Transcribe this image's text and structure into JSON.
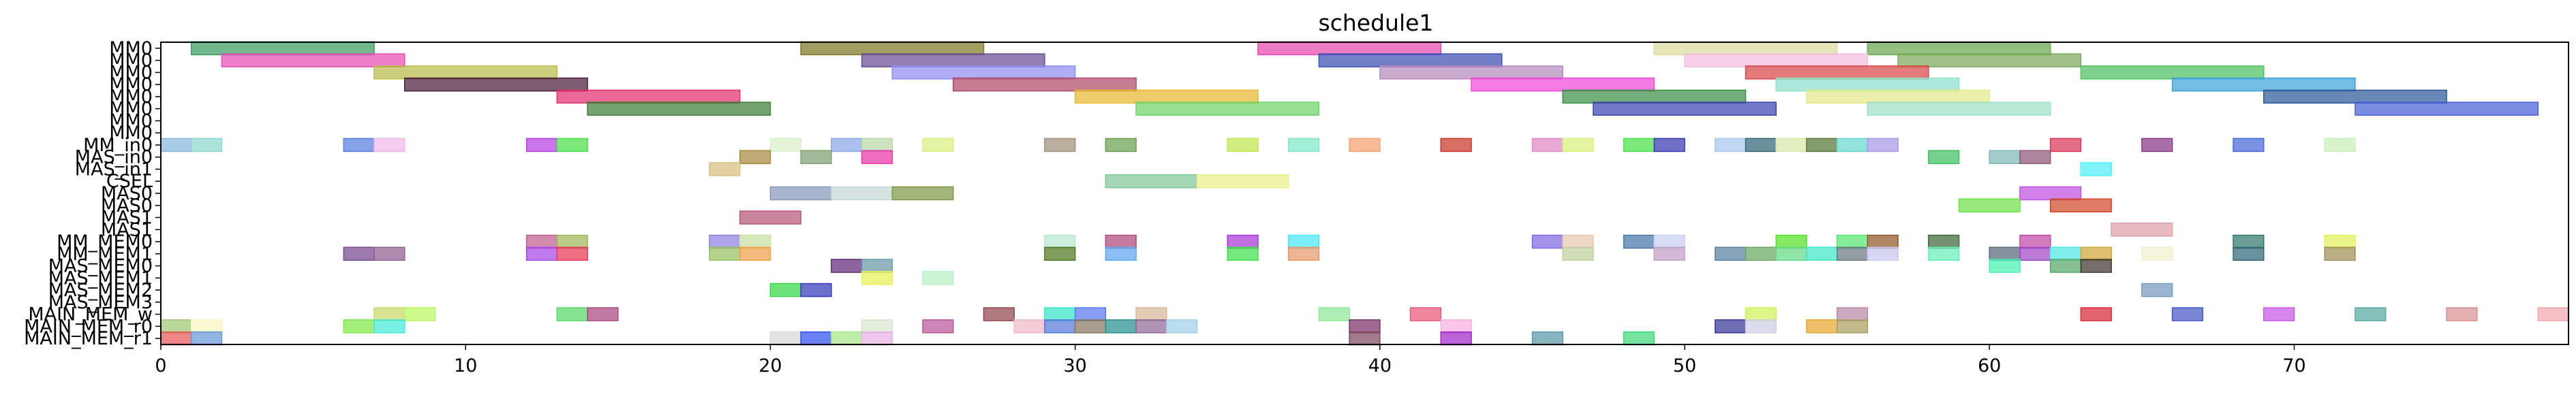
{
  "chart_data": {
    "type": "gantt",
    "title": "schedule1",
    "xlabel": "",
    "ylabel": "",
    "xlim": [
      0,
      79
    ],
    "xticks": [
      0,
      10,
      20,
      30,
      40,
      50,
      60,
      70
    ],
    "grid": false,
    "rows": [
      "MM0",
      "MM0",
      "MM0",
      "MM0",
      "MM0",
      "MM0",
      "MM0",
      "MM0",
      "MM_in0",
      "MAS_in0",
      "MAS_in1",
      "CSEL",
      "MAS0",
      "MAS0",
      "MAS1",
      "MAS1",
      "MM_MEM0",
      "MM_MEM1",
      "MAS_MEM0",
      "MAS_MEM1",
      "MAS_MEM2",
      "MAS_MEM3",
      "MAIN_MEM_w",
      "MAIN_MEM_r0",
      "MAIN_MEM_r1"
    ],
    "visible_row_labels": [
      "MM0",
      "MM0",
      "MM0",
      "MM0",
      "MM0",
      "MM0",
      "MM0",
      "MM0",
      "MM_in0",
      "MAS_in0",
      "MAS_in1",
      "CSEL",
      "MAS0",
      "MAS0",
      "MAS1",
      "MAS1",
      "MM_MEM0",
      "MM_MEM1",
      "MAS_MEM0",
      "MAS_MEM1",
      "MAS_MEM2",
      "MAS_MEM3",
      "MAIN_MEM_w",
      "MAIN_MEM_r0",
      "MAIN_MEM_r1"
    ],
    "tasks": [
      {
        "row": 0,
        "start": 1,
        "end": 7,
        "color": "#3a9c5e"
      },
      {
        "row": 0,
        "start": 21,
        "end": 27,
        "color": "#7f7a25"
      },
      {
        "row": 0,
        "start": 36,
        "end": 42,
        "color": "#e64aae"
      },
      {
        "row": 0,
        "start": 49,
        "end": 55,
        "color": "#d9dca0"
      },
      {
        "row": 0,
        "start": 56,
        "end": 62,
        "color": "#6aa84f"
      },
      {
        "row": 1,
        "start": 2,
        "end": 8,
        "color": "#e64cb8"
      },
      {
        "row": 1,
        "start": 23,
        "end": 29,
        "color": "#6b4c93"
      },
      {
        "row": 1,
        "start": 38,
        "end": 44,
        "color": "#3b4fb5"
      },
      {
        "row": 1,
        "start": 50,
        "end": 56,
        "color": "#f3bde0"
      },
      {
        "row": 1,
        "start": 57,
        "end": 63,
        "color": "#7bab5c"
      },
      {
        "row": 2,
        "start": 7,
        "end": 13,
        "color": "#b8bd4a"
      },
      {
        "row": 2,
        "start": 24,
        "end": 30,
        "color": "#8f8df0"
      },
      {
        "row": 2,
        "start": 40,
        "end": 46,
        "color": "#b68cbe"
      },
      {
        "row": 2,
        "start": 52,
        "end": 58,
        "color": "#d84848"
      },
      {
        "row": 2,
        "start": 63,
        "end": 69,
        "color": "#4fbf60"
      },
      {
        "row": 3,
        "start": 8,
        "end": 14,
        "color": "#4a1f3c"
      },
      {
        "row": 3,
        "start": 26,
        "end": 32,
        "color": "#b04a6a"
      },
      {
        "row": 3,
        "start": 43,
        "end": 49,
        "color": "#f049d8"
      },
      {
        "row": 3,
        "start": 53,
        "end": 59,
        "color": "#8ee0cc"
      },
      {
        "row": 3,
        "start": 66,
        "end": 72,
        "color": "#3ea4d9"
      },
      {
        "row": 4,
        "start": 13,
        "end": 19,
        "color": "#e32f6e"
      },
      {
        "row": 4,
        "start": 30,
        "end": 36,
        "color": "#e8b830"
      },
      {
        "row": 4,
        "start": 46,
        "end": 52,
        "color": "#3c9048"
      },
      {
        "row": 4,
        "start": 54,
        "end": 60,
        "color": "#e3ec8a"
      },
      {
        "row": 4,
        "start": 69,
        "end": 75,
        "color": "#2e5a9a"
      },
      {
        "row": 5,
        "start": 14,
        "end": 20,
        "color": "#3f7f3a"
      },
      {
        "row": 5,
        "start": 32,
        "end": 38,
        "color": "#6fd36a"
      },
      {
        "row": 5,
        "start": 47,
        "end": 53,
        "color": "#3b45b0"
      },
      {
        "row": 5,
        "start": 56,
        "end": 62,
        "color": "#9ee0c8"
      },
      {
        "row": 5,
        "start": 72,
        "end": 78,
        "color": "#4a60d8"
      },
      {
        "row": 8,
        "start": 0,
        "end": 1,
        "color": "#8bb8e0"
      },
      {
        "row": 8,
        "start": 1,
        "end": 2,
        "color": "#8cd8d0"
      },
      {
        "row": 8,
        "start": 6,
        "end": 7,
        "color": "#5a7ee0"
      },
      {
        "row": 8,
        "start": 7,
        "end": 8,
        "color": "#f0b8e8"
      },
      {
        "row": 8,
        "start": 12,
        "end": 13,
        "color": "#b83ee0"
      },
      {
        "row": 8,
        "start": 13,
        "end": 14,
        "color": "#48e048"
      },
      {
        "row": 8,
        "start": 20,
        "end": 21,
        "color": "#d8f0c8"
      },
      {
        "row": 8,
        "start": 22,
        "end": 23,
        "color": "#8ca8e8"
      },
      {
        "row": 8,
        "start": 23,
        "end": 24,
        "color": "#b8d8a8"
      },
      {
        "row": 8,
        "start": 25,
        "end": 26,
        "color": "#d8f080"
      },
      {
        "row": 8,
        "start": 29,
        "end": 30,
        "color": "#a09078"
      },
      {
        "row": 8,
        "start": 31,
        "end": 32,
        "color": "#6aa050"
      },
      {
        "row": 8,
        "start": 35,
        "end": 36,
        "color": "#c0e850"
      },
      {
        "row": 8,
        "start": 37,
        "end": 38,
        "color": "#80e8c8"
      },
      {
        "row": 8,
        "start": 39,
        "end": 40,
        "color": "#f8a070"
      },
      {
        "row": 8,
        "start": 42,
        "end": 43,
        "color": "#c83828"
      },
      {
        "row": 8,
        "start": 45,
        "end": 46,
        "color": "#e088c8"
      },
      {
        "row": 8,
        "start": 46,
        "end": 47,
        "color": "#d8f080"
      },
      {
        "row": 8,
        "start": 48,
        "end": 49,
        "color": "#48e048"
      },
      {
        "row": 8,
        "start": 49,
        "end": 50,
        "color": "#3838b0"
      },
      {
        "row": 8,
        "start": 51,
        "end": 52,
        "color": "#a8c8f0"
      },
      {
        "row": 8,
        "start": 52,
        "end": 53,
        "color": "#306878"
      },
      {
        "row": 8,
        "start": 53,
        "end": 54,
        "color": "#d8e8a8"
      },
      {
        "row": 8,
        "start": 54,
        "end": 55,
        "color": "#587838"
      },
      {
        "row": 8,
        "start": 55,
        "end": 56,
        "color": "#68d8d0"
      },
      {
        "row": 8,
        "start": 56,
        "end": 57,
        "color": "#a898e8"
      },
      {
        "row": 8,
        "start": 62,
        "end": 63,
        "color": "#d83858"
      },
      {
        "row": 8,
        "start": 65,
        "end": 66,
        "color": "#883888"
      },
      {
        "row": 8,
        "start": 68,
        "end": 69,
        "color": "#4868d8"
      },
      {
        "row": 8,
        "start": 71,
        "end": 72,
        "color": "#c8f0b8"
      },
      {
        "row": 9,
        "start": 19,
        "end": 20,
        "color": "#a88840"
      },
      {
        "row": 9,
        "start": 21,
        "end": 22,
        "color": "#80a070"
      },
      {
        "row": 9,
        "start": 23,
        "end": 24,
        "color": "#e838a8"
      },
      {
        "row": 9,
        "start": 58,
        "end": 59,
        "color": "#40c060"
      },
      {
        "row": 9,
        "start": 60,
        "end": 61,
        "color": "#80b8b8"
      },
      {
        "row": 9,
        "start": 61,
        "end": 62,
        "color": "#905878"
      },
      {
        "row": 10,
        "start": 18,
        "end": 19,
        "color": "#d8c080"
      },
      {
        "row": 10,
        "start": 63,
        "end": 64,
        "color": "#50f0f8"
      },
      {
        "row": 11,
        "start": 31,
        "end": 34,
        "color": "#80c898"
      },
      {
        "row": 11,
        "start": 34,
        "end": 37,
        "color": "#e8f088"
      },
      {
        "row": 12,
        "start": 20,
        "end": 22,
        "color": "#8898b8"
      },
      {
        "row": 12,
        "start": 22,
        "end": 24,
        "color": "#c8d8d8"
      },
      {
        "row": 12,
        "start": 24,
        "end": 26,
        "color": "#809848"
      },
      {
        "row": 12,
        "start": 61,
        "end": 63,
        "color": "#c050e0"
      },
      {
        "row": 13,
        "start": 59,
        "end": 61,
        "color": "#70e048"
      },
      {
        "row": 13,
        "start": 62,
        "end": 64,
        "color": "#d04828"
      },
      {
        "row": 14,
        "start": 19,
        "end": 21,
        "color": "#b85878"
      },
      {
        "row": 15,
        "start": 64,
        "end": 66,
        "color": "#e0a0a8"
      },
      {
        "row": 16,
        "start": 12,
        "end": 13,
        "color": "#c06090"
      },
      {
        "row": 16,
        "start": 13,
        "end": 14,
        "color": "#a0b858"
      },
      {
        "row": 16,
        "start": 18,
        "end": 19,
        "color": "#9080e0"
      },
      {
        "row": 16,
        "start": 19,
        "end": 20,
        "color": "#c8e0a0"
      },
      {
        "row": 16,
        "start": 29,
        "end": 30,
        "color": "#b8e8d0"
      },
      {
        "row": 16,
        "start": 31,
        "end": 32,
        "color": "#b04878"
      },
      {
        "row": 16,
        "start": 35,
        "end": 36,
        "color": "#a838d8"
      },
      {
        "row": 16,
        "start": 37,
        "end": 38,
        "color": "#48e8f8"
      },
      {
        "row": 16,
        "start": 45,
        "end": 46,
        "color": "#8068e0"
      },
      {
        "row": 16,
        "start": 46,
        "end": 47,
        "color": "#e8c8b0"
      },
      {
        "row": 16,
        "start": 48,
        "end": 49,
        "color": "#4878a8"
      },
      {
        "row": 16,
        "start": 49,
        "end": 50,
        "color": "#c8d0f0"
      },
      {
        "row": 16,
        "start": 53,
        "end": 54,
        "color": "#58e028"
      },
      {
        "row": 16,
        "start": 55,
        "end": 56,
        "color": "#58e870"
      },
      {
        "row": 16,
        "start": 56,
        "end": 57,
        "color": "#905828"
      },
      {
        "row": 16,
        "start": 58,
        "end": 59,
        "color": "#406838"
      },
      {
        "row": 16,
        "start": 61,
        "end": 62,
        "color": "#c048a8"
      },
      {
        "row": 16,
        "start": 68,
        "end": 69,
        "color": "#307868"
      },
      {
        "row": 16,
        "start": 71,
        "end": 72,
        "color": "#e0f058"
      },
      {
        "row": 17,
        "start": 6,
        "end": 7,
        "color": "#784890"
      },
      {
        "row": 17,
        "start": 7,
        "end": 8,
        "color": "#906090"
      },
      {
        "row": 17,
        "start": 12,
        "end": 13,
        "color": "#a848e8"
      },
      {
        "row": 17,
        "start": 13,
        "end": 14,
        "color": "#e83858"
      },
      {
        "row": 17,
        "start": 18,
        "end": 19,
        "color": "#98c060"
      },
      {
        "row": 17,
        "start": 19,
        "end": 20,
        "color": "#f0a048"
      },
      {
        "row": 17,
        "start": 29,
        "end": 30,
        "color": "#507820"
      },
      {
        "row": 17,
        "start": 31,
        "end": 32,
        "color": "#60a8f0"
      },
      {
        "row": 17,
        "start": 35,
        "end": 36,
        "color": "#40e048"
      },
      {
        "row": 17,
        "start": 37,
        "end": 38,
        "color": "#e89868"
      },
      {
        "row": 17,
        "start": 46,
        "end": 47,
        "color": "#c0d0a0"
      },
      {
        "row": 17,
        "start": 49,
        "end": 50,
        "color": "#c0a0c8"
      },
      {
        "row": 17,
        "start": 51,
        "end": 52,
        "color": "#5880a0"
      },
      {
        "row": 17,
        "start": 52,
        "end": 53,
        "color": "#68a860"
      },
      {
        "row": 17,
        "start": 53,
        "end": 54,
        "color": "#68d888"
      },
      {
        "row": 17,
        "start": 54,
        "end": 55,
        "color": "#40e8c8"
      },
      {
        "row": 17,
        "start": 55,
        "end": 56,
        "color": "#687880"
      },
      {
        "row": 17,
        "start": 56,
        "end": 57,
        "color": "#c8c8f0"
      },
      {
        "row": 17,
        "start": 58,
        "end": 59,
        "color": "#68f0b8"
      },
      {
        "row": 17,
        "start": 60,
        "end": 61,
        "color": "#586878"
      },
      {
        "row": 17,
        "start": 61,
        "end": 62,
        "color": "#a048c8"
      },
      {
        "row": 17,
        "start": 62,
        "end": 63,
        "color": "#50e8e8"
      },
      {
        "row": 17,
        "start": 63,
        "end": 64,
        "color": "#d0a838"
      },
      {
        "row": 17,
        "start": 65,
        "end": 66,
        "color": "#f0f0d0"
      },
      {
        "row": 17,
        "start": 68,
        "end": 69,
        "color": "#306878"
      },
      {
        "row": 17,
        "start": 71,
        "end": 72,
        "color": "#a09058"
      },
      {
        "row": 18,
        "start": 22,
        "end": 23,
        "color": "#602878"
      },
      {
        "row": 18,
        "start": 23,
        "end": 24,
        "color": "#6898a8"
      },
      {
        "row": 18,
        "start": 60,
        "end": 61,
        "color": "#48f0b0"
      },
      {
        "row": 18,
        "start": 62,
        "end": 63,
        "color": "#58a868"
      },
      {
        "row": 18,
        "start": 63,
        "end": 64,
        "color": "#403830"
      },
      {
        "row": 19,
        "start": 23,
        "end": 24,
        "color": "#e8f058"
      },
      {
        "row": 19,
        "start": 25,
        "end": 26,
        "color": "#b8f0c8"
      },
      {
        "row": 20,
        "start": 20,
        "end": 21,
        "color": "#38d848"
      },
      {
        "row": 20,
        "start": 21,
        "end": 22,
        "color": "#3838b8"
      },
      {
        "row": 20,
        "start": 65,
        "end": 66,
        "color": "#7898c0"
      },
      {
        "row": 22,
        "start": 7,
        "end": 8,
        "color": "#c8d868"
      },
      {
        "row": 22,
        "start": 8,
        "end": 9,
        "color": "#b8f860"
      },
      {
        "row": 22,
        "start": 13,
        "end": 14,
        "color": "#58d868"
      },
      {
        "row": 22,
        "start": 14,
        "end": 15,
        "color": "#a84880"
      },
      {
        "row": 22,
        "start": 27,
        "end": 28,
        "color": "#904850"
      },
      {
        "row": 22,
        "start": 29,
        "end": 30,
        "color": "#38e8c8"
      },
      {
        "row": 22,
        "start": 30,
        "end": 31,
        "color": "#5878f0"
      },
      {
        "row": 22,
        "start": 32,
        "end": 33,
        "color": "#d8b898"
      },
      {
        "row": 22,
        "start": 38,
        "end": 39,
        "color": "#90e898"
      },
      {
        "row": 22,
        "start": 41,
        "end": 42,
        "color": "#e85878"
      },
      {
        "row": 22,
        "start": 52,
        "end": 53,
        "color": "#d0f058"
      },
      {
        "row": 22,
        "start": 55,
        "end": 56,
        "color": "#b888a8"
      },
      {
        "row": 22,
        "start": 63,
        "end": 64,
        "color": "#d82838"
      },
      {
        "row": 22,
        "start": 66,
        "end": 67,
        "color": "#4858c8"
      },
      {
        "row": 22,
        "start": 69,
        "end": 70,
        "color": "#c858e8"
      },
      {
        "row": 22,
        "start": 72,
        "end": 73,
        "color": "#58a8a0"
      },
      {
        "row": 22,
        "start": 75,
        "end": 76,
        "color": "#d89090"
      },
      {
        "row": 22,
        "start": 78,
        "end": 79,
        "color": "#f0a8b0"
      },
      {
        "row": 23,
        "start": 0,
        "end": 1,
        "color": "#a0c870"
      },
      {
        "row": 23,
        "start": 1,
        "end": 2,
        "color": "#f8f8c0"
      },
      {
        "row": 23,
        "start": 6,
        "end": 7,
        "color": "#80e848"
      },
      {
        "row": 23,
        "start": 7,
        "end": 8,
        "color": "#48e8d8"
      },
      {
        "row": 23,
        "start": 23,
        "end": 24,
        "color": "#d8e8d0"
      },
      {
        "row": 23,
        "start": 25,
        "end": 26,
        "color": "#b85898"
      },
      {
        "row": 23,
        "start": 28,
        "end": 29,
        "color": "#f0b8c8"
      },
      {
        "row": 23,
        "start": 29,
        "end": 30,
        "color": "#5878d8"
      },
      {
        "row": 23,
        "start": 30,
        "end": 31,
        "color": "#887860"
      },
      {
        "row": 23,
        "start": 31,
        "end": 32,
        "color": "#289090"
      },
      {
        "row": 23,
        "start": 32,
        "end": 33,
        "color": "#906898"
      },
      {
        "row": 23,
        "start": 33,
        "end": 34,
        "color": "#a0d0e8"
      },
      {
        "row": 23,
        "start": 39,
        "end": 40,
        "color": "#783068"
      },
      {
        "row": 23,
        "start": 42,
        "end": 43,
        "color": "#f8b0e0"
      },
      {
        "row": 23,
        "start": 51,
        "end": 52,
        "color": "#383898"
      },
      {
        "row": 23,
        "start": 52,
        "end": 53,
        "color": "#d0d0e8"
      },
      {
        "row": 23,
        "start": 54,
        "end": 55,
        "color": "#e8a830"
      },
      {
        "row": 23,
        "start": 55,
        "end": 56,
        "color": "#a8a060"
      },
      {
        "row": 24,
        "start": 0,
        "end": 1,
        "color": "#e85858"
      },
      {
        "row": 24,
        "start": 1,
        "end": 2,
        "color": "#6898d8"
      },
      {
        "row": 24,
        "start": 20,
        "end": 21,
        "color": "#d8d8d8"
      },
      {
        "row": 24,
        "start": 21,
        "end": 22,
        "color": "#3050f0"
      },
      {
        "row": 24,
        "start": 22,
        "end": 23,
        "color": "#a8e888"
      },
      {
        "row": 24,
        "start": 23,
        "end": 24,
        "color": "#e8b0e8"
      },
      {
        "row": 24,
        "start": 39,
        "end": 40,
        "color": "#804860"
      },
      {
        "row": 24,
        "start": 42,
        "end": 43,
        "color": "#a028c8"
      },
      {
        "row": 24,
        "start": 45,
        "end": 46,
        "color": "#5898a8"
      },
      {
        "row": 24,
        "start": 48,
        "end": 49,
        "color": "#40d878"
      }
    ]
  }
}
